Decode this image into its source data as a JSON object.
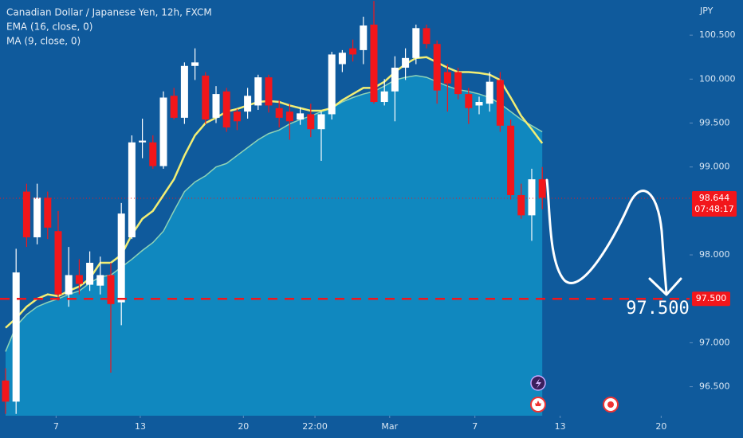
{
  "chart_data": {
    "type": "candlestick",
    "title": "Canadian Dollar / Japanese Yen, 12h, FXCM",
    "indicators": [
      "EMA (16, close, 0)",
      "MA (9, close, 0)"
    ],
    "currency": "JPY",
    "open": [
      96.57,
      96.33,
      98.72,
      98.2,
      98.65,
      98.27,
      97.55,
      97.77,
      97.66,
      97.65,
      97.77,
      97.46,
      98.2,
      99.28,
      99.28,
      99.01,
      99.81,
      99.56,
      100.15,
      100.04,
      99.56,
      99.86,
      99.63,
      99.63,
      99.7,
      100.02,
      99.67,
      99.63,
      99.54,
      99.6,
      99.43,
      99.6,
      100.17,
      100.35,
      100.33,
      100.62,
      99.74,
      99.86,
      100.13,
      100.24,
      100.58,
      100.4,
      100.08,
      100.08,
      99.83,
      99.7,
      99.72,
      99.99,
      99.47,
      98.68,
      98.45,
      98.86
    ],
    "high": [
      96.71,
      98.07,
      98.81,
      98.81,
      98.72,
      98.5,
      98.09,
      97.95,
      98.04,
      97.98,
      97.91,
      98.59,
      99.36,
      99.55,
      99.36,
      99.86,
      99.9,
      100.19,
      100.35,
      100.08,
      99.92,
      99.9,
      99.66,
      99.9,
      100.05,
      100.05,
      99.76,
      99.72,
      99.68,
      99.72,
      99.63,
      100.31,
      100.33,
      100.45,
      100.71,
      100.89,
      100.0,
      100.26,
      100.35,
      100.62,
      100.62,
      100.44,
      100.17,
      100.13,
      99.9,
      99.8,
      100.08,
      100.08,
      99.54,
      98.81,
      98.98,
      99.0
    ],
    "low": [
      96.19,
      96.19,
      98.09,
      98.12,
      98.18,
      97.48,
      97.41,
      97.55,
      97.59,
      97.55,
      96.66,
      97.2,
      98.18,
      99.1,
      98.98,
      98.98,
      99.54,
      99.49,
      99.99,
      99.49,
      99.5,
      99.4,
      99.42,
      99.55,
      99.65,
      99.62,
      99.45,
      99.31,
      99.48,
      99.34,
      99.07,
      99.54,
      100.08,
      100.2,
      100.17,
      99.72,
      99.7,
      99.52,
      99.99,
      100.17,
      100.35,
      99.72,
      99.63,
      99.77,
      99.49,
      99.6,
      99.63,
      99.4,
      98.63,
      98.41,
      98.16,
      98.52
    ],
    "close": [
      96.33,
      97.8,
      98.2,
      98.65,
      98.31,
      97.55,
      97.77,
      97.67,
      97.91,
      97.77,
      97.44,
      98.47,
      99.28,
      99.3,
      99.01,
      99.79,
      99.56,
      100.15,
      100.19,
      99.54,
      99.83,
      99.45,
      99.52,
      99.81,
      100.02,
      99.7,
      99.56,
      99.52,
      99.61,
      99.43,
      99.6,
      100.28,
      100.3,
      100.28,
      100.61,
      99.74,
      99.86,
      100.13,
      100.24,
      100.58,
      100.4,
      99.87,
      99.95,
      99.83,
      99.67,
      99.74,
      99.97,
      99.47,
      98.68,
      98.45,
      98.86,
      98.65
    ],
    "ema": [
      97.17,
      97.28,
      97.41,
      97.5,
      97.55,
      97.53,
      97.59,
      97.64,
      97.73,
      97.91,
      97.91,
      98.0,
      98.23,
      98.41,
      98.5,
      98.68,
      98.86,
      99.13,
      99.36,
      99.5,
      99.56,
      99.63,
      99.66,
      99.7,
      99.74,
      99.75,
      99.74,
      99.7,
      99.67,
      99.64,
      99.64,
      99.67,
      99.76,
      99.83,
      99.9,
      99.9,
      99.97,
      100.08,
      100.17,
      100.24,
      100.25,
      100.19,
      100.13,
      100.08,
      100.08,
      100.07,
      100.05,
      99.99,
      99.79,
      99.58,
      99.43,
      99.27
    ],
    "ma": [
      96.9,
      97.19,
      97.32,
      97.41,
      97.46,
      97.5,
      97.55,
      97.59,
      97.68,
      97.75,
      97.77,
      97.86,
      97.95,
      98.05,
      98.14,
      98.27,
      98.5,
      98.72,
      98.83,
      98.9,
      99.0,
      99.04,
      99.13,
      99.22,
      99.31,
      99.38,
      99.42,
      99.49,
      99.54,
      99.58,
      99.63,
      99.67,
      99.74,
      99.79,
      99.83,
      99.86,
      99.92,
      99.99,
      100.02,
      100.04,
      100.02,
      99.97,
      99.92,
      99.88,
      99.86,
      99.83,
      99.79,
      99.72,
      99.63,
      99.54,
      99.47,
      99.4
    ],
    "up_color": "#ffffff",
    "down_color": "#f2161b",
    "ema_color": "#f2ee74",
    "ma_color": "#1088bf",
    "ma_edge_color": "#8fd3b6",
    "ylim": [
      96.17,
      100.9
    ],
    "yticks": [
      {
        "value": 100.5,
        "label": "100.500"
      },
      {
        "value": 100,
        "label": "100.000"
      },
      {
        "value": 99.5,
        "label": "99.500"
      },
      {
        "value": 99,
        "label": "99.000"
      },
      {
        "value": 98,
        "label": "98.000"
      },
      {
        "value": 97,
        "label": "97.000"
      },
      {
        "value": 96.5,
        "label": "96.500"
      }
    ],
    "xlim": [
      -0.53,
      65
    ],
    "xticks": [
      {
        "value": 4.8,
        "label": "7"
      },
      {
        "value": 12.8,
        "label": "13"
      },
      {
        "value": 22.6,
        "label": "20"
      },
      {
        "value": 29.4,
        "label": "22:00"
      },
      {
        "value": 36.5,
        "label": "Mar"
      },
      {
        "value": 44.6,
        "label": "7"
      },
      {
        "value": 52.7,
        "label": "13"
      },
      {
        "value": 62.3,
        "label": "20"
      }
    ],
    "current_price": {
      "value": 98.644,
      "label": "98.644",
      "countdown": "07:48:17"
    },
    "target_line": {
      "value": 97.5,
      "label": "97.500"
    },
    "annotation": "97.500"
  }
}
